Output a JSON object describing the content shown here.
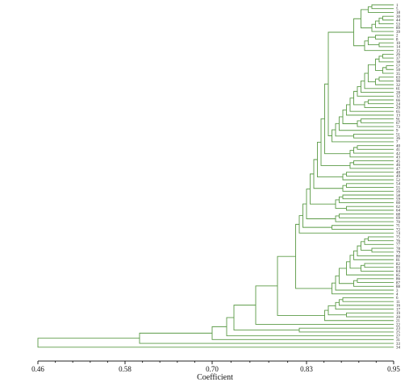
{
  "chart_data": {
    "type": "dendrogram",
    "orientation": "horizontal",
    "xlabel": "Coefficient",
    "xlim": [
      0.46,
      0.95
    ],
    "x_ticks": [
      "0.46",
      "0.58",
      "0.70",
      "0.83",
      "0.95"
    ],
    "x_tick_values": [
      0.46,
      0.58,
      0.7,
      0.83,
      0.95
    ],
    "colors": {
      "branch": "#5a9a45",
      "axis": "#222222"
    },
    "leaves": [
      "1",
      "5",
      "18",
      "30",
      "44",
      "53",
      "89",
      "39",
      "2",
      "8",
      "10",
      "14",
      "15",
      "26",
      "37",
      "38",
      "57",
      "50",
      "35",
      "63",
      "90",
      "32",
      "61",
      "28",
      "12",
      "66",
      "24",
      "29",
      "65",
      "13",
      "91",
      "67",
      "73",
      "9",
      "51",
      "36",
      "7",
      "40",
      "41",
      "42",
      "43",
      "45",
      "46",
      "47",
      "48",
      "49",
      "52",
      "54",
      "55",
      "56",
      "58",
      "59",
      "60",
      "62",
      "64",
      "68",
      "69",
      "70",
      "71",
      "72",
      "74",
      "75",
      "76",
      "77",
      "78",
      "79",
      "80",
      "81",
      "82",
      "83",
      "84",
      "85",
      "86",
      "87",
      "88",
      "3",
      "4",
      "6",
      "11",
      "16",
      "17",
      "19",
      "20",
      "21",
      "22",
      "23",
      "25",
      "27",
      "31",
      "33",
      "34"
    ],
    "merges": [
      [
        0,
        1,
        0.92
      ],
      [
        91,
        2,
        0.915
      ],
      [
        3,
        4,
        0.935
      ],
      [
        93,
        5,
        0.93
      ],
      [
        94,
        6,
        0.925
      ],
      [
        95,
        7,
        0.92
      ],
      [
        92,
        96,
        0.905
      ],
      [
        8,
        9,
        0.925
      ],
      [
        10,
        11,
        0.93
      ],
      [
        98,
        99,
        0.915
      ],
      [
        100,
        12,
        0.91
      ],
      [
        97,
        101,
        0.895
      ],
      [
        13,
        14,
        0.935
      ],
      [
        103,
        15,
        0.93
      ],
      [
        16,
        17,
        0.94
      ],
      [
        105,
        18,
        0.935
      ],
      [
        104,
        106,
        0.925
      ],
      [
        19,
        20,
        0.93
      ],
      [
        108,
        21,
        0.925
      ],
      [
        107,
        109,
        0.915
      ],
      [
        110,
        22,
        0.91
      ],
      [
        111,
        23,
        0.905
      ],
      [
        112,
        24,
        0.9
      ],
      [
        25,
        26,
        0.915
      ],
      [
        114,
        27,
        0.91
      ],
      [
        113,
        115,
        0.895
      ],
      [
        116,
        28,
        0.89
      ],
      [
        117,
        29,
        0.885
      ],
      [
        30,
        31,
        0.905
      ],
      [
        119,
        32,
        0.9
      ],
      [
        118,
        120,
        0.88
      ],
      [
        121,
        33,
        0.875
      ],
      [
        34,
        35,
        0.895
      ],
      [
        122,
        123,
        0.87
      ],
      [
        124,
        36,
        0.865
      ],
      [
        102,
        125,
        0.86
      ],
      [
        37,
        38,
        0.9
      ],
      [
        127,
        39,
        0.895
      ],
      [
        128,
        40,
        0.89
      ],
      [
        126,
        129,
        0.855
      ],
      [
        41,
        42,
        0.895
      ],
      [
        131,
        43,
        0.89
      ],
      [
        130,
        132,
        0.85
      ],
      [
        44,
        45,
        0.885
      ],
      [
        134,
        46,
        0.88
      ],
      [
        133,
        135,
        0.845
      ],
      [
        47,
        48,
        0.885
      ],
      [
        137,
        49,
        0.88
      ],
      [
        136,
        138,
        0.84
      ],
      [
        50,
        51,
        0.88
      ],
      [
        140,
        52,
        0.875
      ],
      [
        53,
        54,
        0.885
      ],
      [
        141,
        142,
        0.87
      ],
      [
        139,
        143,
        0.835
      ],
      [
        55,
        56,
        0.875
      ],
      [
        145,
        57,
        0.87
      ],
      [
        144,
        146,
        0.83
      ],
      [
        58,
        59,
        0.865
      ],
      [
        147,
        148,
        0.825
      ],
      [
        149,
        60,
        0.82
      ],
      [
        61,
        62,
        0.915
      ],
      [
        151,
        63,
        0.91
      ],
      [
        64,
        65,
        0.92
      ],
      [
        152,
        153,
        0.905
      ],
      [
        154,
        66,
        0.9
      ],
      [
        155,
        67,
        0.895
      ],
      [
        68,
        69,
        0.91
      ],
      [
        157,
        70,
        0.905
      ],
      [
        156,
        158,
        0.89
      ],
      [
        159,
        71,
        0.885
      ],
      [
        72,
        73,
        0.9
      ],
      [
        161,
        74,
        0.895
      ],
      [
        160,
        162,
        0.875
      ],
      [
        163,
        75,
        0.87
      ],
      [
        164,
        76,
        0.865
      ],
      [
        150,
        165,
        0.815
      ],
      [
        77,
        78,
        0.88
      ],
      [
        167,
        79,
        0.875
      ],
      [
        168,
        80,
        0.87
      ],
      [
        81,
        82,
        0.885
      ],
      [
        169,
        170,
        0.86
      ],
      [
        171,
        83,
        0.855
      ],
      [
        166,
        172,
        0.79
      ],
      [
        173,
        84,
        0.76
      ],
      [
        85,
        86,
        0.82
      ],
      [
        174,
        175,
        0.73
      ],
      [
        176,
        87,
        0.72
      ],
      [
        177,
        88,
        0.7
      ],
      [
        178,
        89,
        0.6
      ],
      [
        179,
        90,
        0.46
      ]
    ]
  }
}
